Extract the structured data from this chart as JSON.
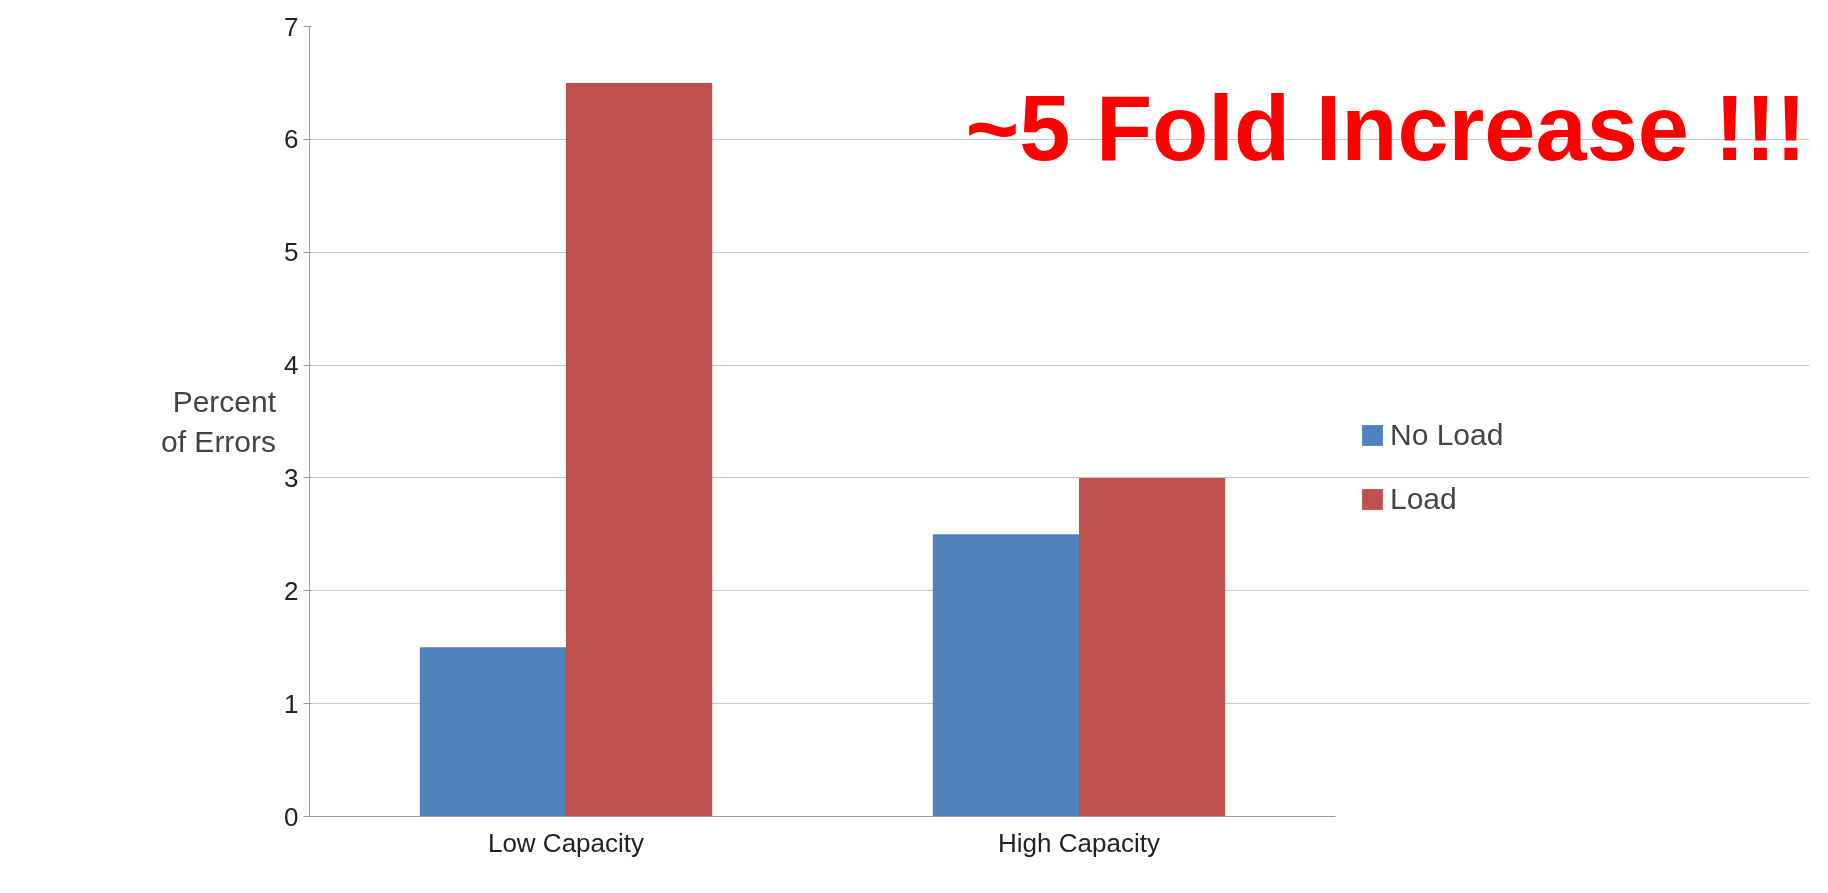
{
  "chart_data": {
    "type": "bar",
    "ylabel": "Percent of Errors",
    "categories": [
      "Low Capacity",
      "High Capacity"
    ],
    "series": [
      {
        "name": "No Load",
        "color": "#4f81bd",
        "values": [
          1.5,
          2.5
        ]
      },
      {
        "name": "Load",
        "color": "#c0504d",
        "values": [
          6.5,
          3.0
        ]
      }
    ],
    "ylim": [
      0,
      7
    ],
    "yticks": [
      0,
      1,
      2,
      3,
      4,
      5,
      6,
      7
    ],
    "grid": "y",
    "legend": "right",
    "annotations": [
      "~5 Fold Increase !!!"
    ]
  }
}
